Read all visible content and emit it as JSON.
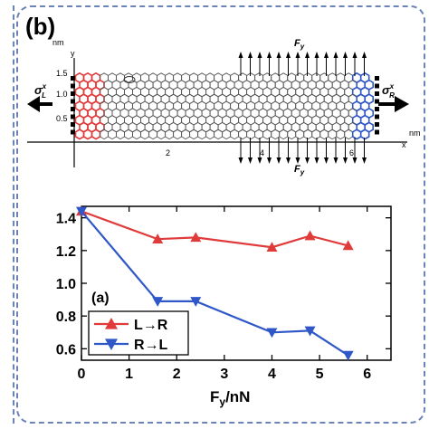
{
  "panel_b": {
    "label": "(b)",
    "y_unit": "nm",
    "x_unit": "nm",
    "y_axis_letter": "y",
    "x_axis_letter": "x",
    "y_ticks": [
      "1.5",
      "1.0",
      "0.5"
    ],
    "x_ticks": [
      "2",
      "4",
      "6"
    ],
    "force_label": "F",
    "force_sub": "y",
    "stress_left": "σ",
    "stress_left_sup": "x",
    "stress_left_sub": "L",
    "stress_right": "σ",
    "stress_right_sup": "x",
    "stress_right_sub": "R",
    "colors": {
      "left_lead": "#e03a3a",
      "right_lead": "#2f57c8",
      "lattice": "#555555"
    }
  },
  "chart_data": {
    "type": "line",
    "panel_label": "(a)",
    "xlabel": "F",
    "xlabel_sub": "y",
    "xlabel_unit": "/nN",
    "ylabel": "",
    "xlim": [
      0,
      6.5
    ],
    "ylim": [
      0.53,
      1.47
    ],
    "x_ticks": [
      "0",
      "1",
      "2",
      "3",
      "4",
      "5",
      "6"
    ],
    "y_ticks": [
      "0.6",
      "0.8",
      "1.0",
      "1.2",
      "1.4"
    ],
    "grid": false,
    "legend_position": "bottom-left",
    "series": [
      {
        "name": "L→R",
        "color": "#e03a3a",
        "marker": "triangle-up",
        "x": [
          0,
          1.6,
          2.4,
          4.0,
          4.8,
          5.6
        ],
        "y": [
          1.44,
          1.27,
          1.28,
          1.22,
          1.29,
          1.23
        ]
      },
      {
        "name": "R→L",
        "color": "#2f57c8",
        "marker": "triangle-down",
        "x": [
          0,
          1.6,
          2.4,
          4.0,
          4.8,
          5.6
        ],
        "y": [
          1.44,
          0.89,
          0.89,
          0.7,
          0.71,
          0.56
        ]
      }
    ]
  }
}
